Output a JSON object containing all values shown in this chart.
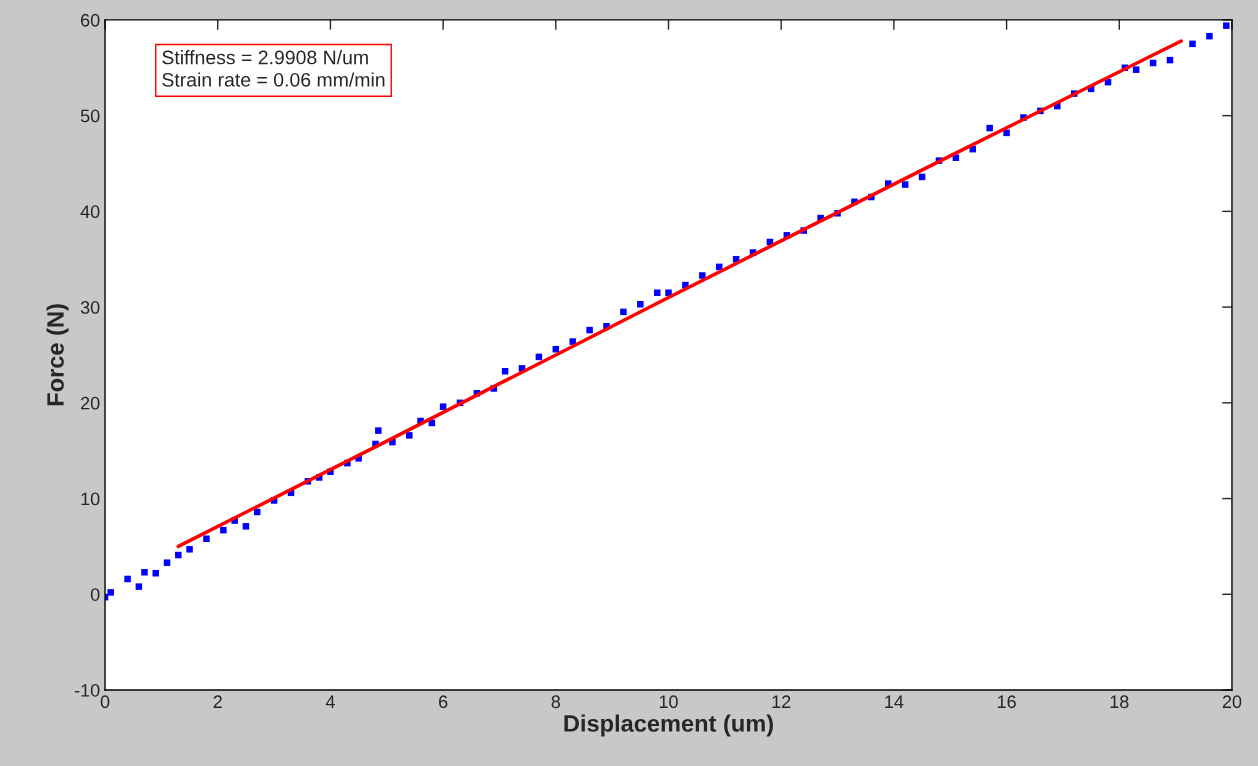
{
  "chart_data": {
    "type": "scatter",
    "xlabel": "Displacement (um)",
    "ylabel": "Force (N)",
    "xlim": [
      0,
      20
    ],
    "ylim": [
      -10,
      60
    ],
    "xticks": [
      0,
      2,
      4,
      6,
      8,
      10,
      12,
      14,
      16,
      18,
      20
    ],
    "yticks": [
      -10,
      0,
      10,
      20,
      30,
      40,
      50,
      60
    ],
    "grid": false,
    "annotations": [
      "Stiffness = 2.9908 N/um\nStrain rate = 0.06 mm/min"
    ],
    "series": [
      {
        "color": "#0000ff",
        "marker": "square",
        "x": [
          0,
          0.1,
          0.4,
          0.6,
          0.7,
          0.9,
          1.1,
          1.3,
          1.5,
          1.8,
          2.1,
          2.3,
          2.5,
          2.7,
          3.0,
          3.3,
          3.6,
          3.8,
          4.0,
          4.3,
          4.5,
          4.8,
          4.85,
          5.1,
          5.4,
          5.6,
          5.8,
          6.0,
          6.3,
          6.6,
          6.9,
          7.1,
          7.4,
          7.7,
          8.0,
          8.3,
          8.6,
          8.9,
          9.2,
          9.5,
          9.8,
          10.0,
          10.3,
          10.6,
          10.9,
          11.2,
          11.5,
          11.8,
          12.1,
          12.4,
          12.7,
          13.0,
          13.3,
          13.6,
          13.9,
          14.2,
          14.5,
          14.8,
          15.1,
          15.4,
          15.7,
          16.0,
          16.3,
          16.6,
          16.9,
          17.2,
          17.5,
          17.8,
          18.1,
          18.3,
          18.6,
          18.9,
          19.3,
          19.6,
          19.9
        ],
        "values": [
          -0.3,
          0.2,
          1.6,
          0.8,
          2.3,
          2.2,
          3.3,
          4.1,
          4.7,
          5.8,
          6.7,
          7.7,
          7.1,
          8.6,
          9.8,
          10.6,
          11.8,
          12.2,
          12.8,
          13.7,
          14.2,
          15.7,
          17.1,
          15.9,
          16.6,
          18.1,
          17.9,
          19.6,
          20.0,
          21.0,
          21.5,
          23.3,
          23.6,
          24.8,
          25.6,
          26.4,
          27.6,
          28.0,
          29.5,
          30.3,
          31.5,
          31.5,
          32.3,
          33.3,
          34.2,
          35.0,
          35.7,
          36.8,
          37.5,
          38.0,
          39.3,
          39.8,
          41.0,
          41.5,
          42.9,
          42.8,
          43.6,
          45.3,
          45.6,
          46.5,
          48.7,
          48.2,
          49.8,
          50.5,
          51.0,
          52.3,
          52.8,
          53.5,
          55.0,
          54.8,
          55.5,
          55.8,
          57.5,
          58.3,
          59.4
        ]
      },
      {
        "type": "line",
        "color": "#ff0000",
        "marker": "none",
        "line_style": "solid",
        "x": [
          1.3,
          5,
          10,
          15,
          19.1
        ],
        "values": [
          5.0,
          16.0,
          31.0,
          45.8,
          57.8
        ]
      }
    ]
  }
}
